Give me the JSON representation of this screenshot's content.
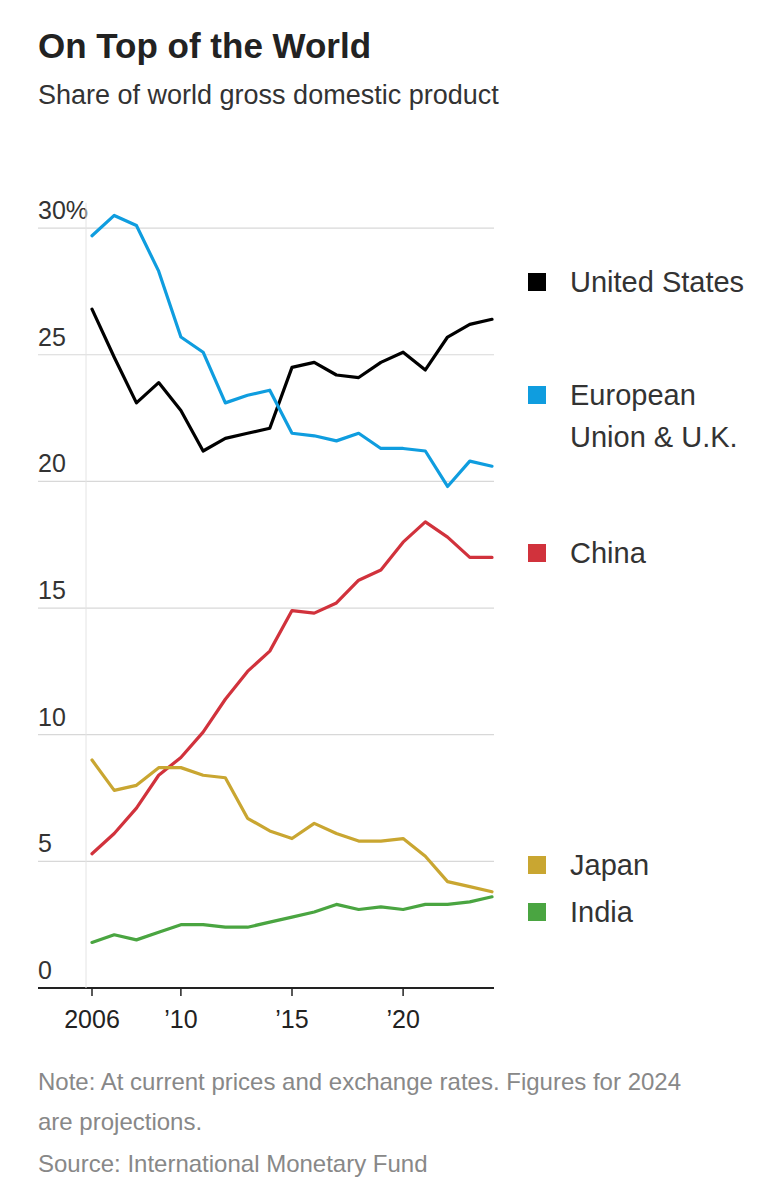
{
  "chart_data": {
    "type": "line",
    "title": "On Top of the World",
    "subtitle": "Share of world gross domestic product",
    "note": "Note: At current prices and exchange rates. Figures for 2024 are projections.",
    "source": "Source: International Monetary Fund",
    "x": [
      2006,
      2007,
      2008,
      2009,
      2010,
      2011,
      2012,
      2013,
      2014,
      2015,
      2016,
      2017,
      2018,
      2019,
      2020,
      2021,
      2022,
      2023,
      2024
    ],
    "xlim": [
      2006,
      2024
    ],
    "xticks": [
      {
        "value": 2006,
        "label": "2006"
      },
      {
        "value": 2010,
        "label": "’10"
      },
      {
        "value": 2015,
        "label": "’15"
      },
      {
        "value": 2020,
        "label": "’20"
      }
    ],
    "ylim": [
      0,
      31
    ],
    "yticks": [
      0,
      5,
      10,
      15,
      20,
      25,
      {
        "value": 30,
        "label": "30%"
      }
    ],
    "grid": true,
    "legend": "right",
    "series": [
      {
        "name": "United States",
        "color": "#000000",
        "values": [
          26.8,
          24.9,
          23.1,
          23.9,
          22.8,
          21.2,
          21.7,
          21.9,
          22.1,
          24.5,
          24.7,
          24.2,
          24.1,
          24.7,
          25.1,
          24.4,
          25.7,
          26.2,
          26.4
        ]
      },
      {
        "name": "European Union & U.K.",
        "color": "#0f9ddf",
        "values": [
          29.7,
          30.5,
          30.1,
          28.3,
          25.7,
          25.1,
          23.1,
          23.4,
          23.6,
          21.9,
          21.8,
          21.6,
          21.9,
          21.3,
          21.3,
          21.2,
          19.8,
          20.8,
          20.6
        ]
      },
      {
        "name": "China",
        "color": "#d1323c",
        "values": [
          5.3,
          6.1,
          7.1,
          8.4,
          9.1,
          10.1,
          11.4,
          12.5,
          13.3,
          14.9,
          14.8,
          15.2,
          16.1,
          16.5,
          17.6,
          18.4,
          17.8,
          17.0,
          17.0
        ]
      },
      {
        "name": "Japan",
        "color": "#c9a631",
        "values": [
          9.0,
          7.8,
          8.0,
          8.7,
          8.7,
          8.4,
          8.3,
          6.7,
          6.2,
          5.9,
          6.5,
          6.1,
          5.8,
          5.8,
          5.9,
          5.2,
          4.2,
          4.0,
          3.8
        ]
      },
      {
        "name": "India",
        "color": "#4aa541",
        "values": [
          1.8,
          2.1,
          1.9,
          2.2,
          2.5,
          2.5,
          2.4,
          2.4,
          2.6,
          2.8,
          3.0,
          3.3,
          3.1,
          3.2,
          3.1,
          3.3,
          3.3,
          3.4,
          3.6
        ]
      }
    ]
  }
}
